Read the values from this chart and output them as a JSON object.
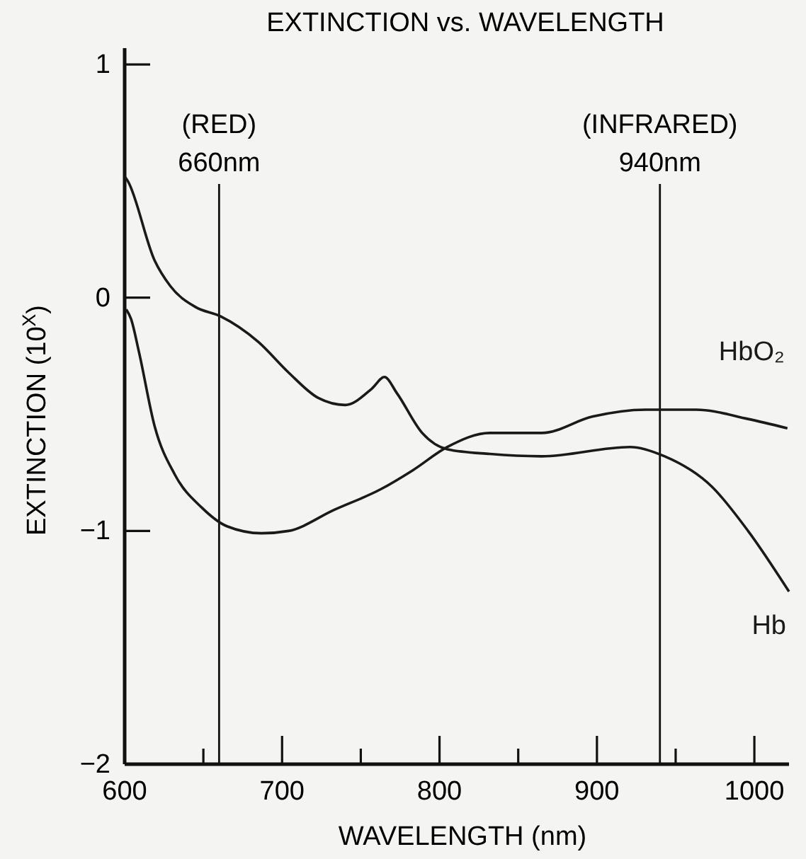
{
  "chart_data": {
    "type": "line",
    "title": "EXTINCTION vs. WAVELENGTH",
    "xlabel": "WAVELENGTH (nm)",
    "ylabel": "EXTINCTION (10$^{X}$)",
    "xlim": [
      600,
      1022
    ],
    "ylim": [
      -2,
      1.07
    ],
    "xticks": [
      600,
      {
        "value": 650,
        "label": null
      },
      700,
      {
        "value": 750,
        "label": null
      },
      800,
      {
        "value": 850,
        "label": null
      },
      900,
      {
        "value": 950,
        "label": null
      },
      1000
    ],
    "yticks": [
      -2,
      -1,
      0,
      1
    ],
    "grid": false,
    "marker": "none",
    "line_style": "solid",
    "ref_lines": [
      {
        "axis": "x",
        "value": 660,
        "label": "(RED)\n660nm"
      },
      {
        "axis": "x",
        "value": 940,
        "label": "(INFRARED)\n940nm"
      }
    ],
    "series": [
      {
        "name": "Hb",
        "color": "#1a1a1a",
        "x": [
          600,
          602,
          619,
          629,
          645,
          661,
          685,
          704,
          723,
          740,
          757,
          765,
          773,
          789,
          805,
          832,
          865,
          921,
          943,
          973,
          996,
          1022
        ],
        "values": [
          0.52,
          0.5,
          0.16,
          0.05,
          -0.04,
          -0.08,
          -0.19,
          -0.32,
          -0.43,
          -0.46,
          -0.39,
          -0.34,
          -0.41,
          -0.58,
          -0.65,
          -0.67,
          -0.68,
          -0.64,
          -0.68,
          -0.81,
          -1.0,
          -1.26
        ]
      },
      {
        "name": "HbO₂",
        "color": "#1a1a1a",
        "x": [
          601,
          604,
          609,
          619,
          632,
          649,
          665,
          687,
          704,
          733,
          763,
          783,
          805,
          832,
          865,
          897,
          931,
          963,
          996,
          1021
        ],
        "values": [
          -0.05,
          -0.09,
          -0.23,
          -0.55,
          -0.76,
          -0.9,
          -0.98,
          -1.01,
          -1.0,
          -0.91,
          -0.82,
          -0.74,
          -0.64,
          -0.58,
          -0.58,
          -0.51,
          -0.48,
          -0.48,
          -0.52,
          -0.56
        ]
      }
    ]
  }
}
